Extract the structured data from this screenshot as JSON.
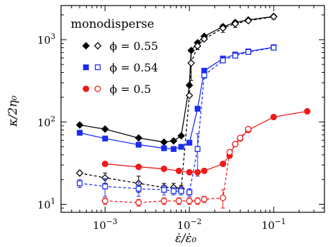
{
  "chart_data": {
    "type": "scatter",
    "xscale": "log",
    "yscale": "log",
    "xlim": [
      0.0003,
      0.4
    ],
    "ylim": [
      8,
      2600
    ],
    "xlabel": "ε̇/ε̇₀",
    "ylabel": "κ/2η₀",
    "x_ticks": [
      {
        "value": 0.001,
        "base": "10",
        "exp": "−3"
      },
      {
        "value": 0.01,
        "base": "10",
        "exp": "−2"
      },
      {
        "value": 0.1,
        "base": "10",
        "exp": "−1"
      }
    ],
    "y_ticks": [
      {
        "value": 10,
        "base": "10",
        "exp": "1"
      },
      {
        "value": 100,
        "base": "10",
        "exp": "2"
      },
      {
        "value": 1000,
        "base": "10",
        "exp": "3"
      }
    ],
    "legend_title": "monodisperse",
    "legend_position": "top-left",
    "series": [
      {
        "name": "ϕ = 0.55",
        "legend_label": "ϕ = 0.55",
        "color": "#000000",
        "filled_marker": "diamond",
        "open_marker": "diamond-open",
        "filled": {
          "x": [
            0.0005,
            0.001,
            0.0025,
            0.005,
            0.0065,
            0.008,
            0.01,
            0.0105,
            0.0125,
            0.015,
            0.025,
            0.035,
            0.05,
            0.1
          ],
          "y": [
            92,
            82,
            64,
            57,
            59,
            68,
            280,
            740,
            920,
            1100,
            1440,
            1620,
            1740,
            1920
          ]
        },
        "open": {
          "x": [
            0.0005,
            0.001,
            0.0025,
            0.005,
            0.0065,
            0.008,
            0.01,
            0.0105,
            0.0125,
            0.015,
            0.025,
            0.035,
            0.05,
            0.1
          ],
          "y": [
            24,
            21,
            18,
            16,
            16,
            15.5,
            210,
            520,
            840,
            1020,
            1380,
            1560,
            1700,
            1900
          ],
          "err": [
            0,
            3,
            4,
            2,
            2,
            1.5,
            0,
            200,
            80,
            0,
            150,
            150,
            0,
            120
          ]
        }
      },
      {
        "name": "ϕ = 0.54",
        "legend_label": "ϕ = 0.54",
        "color": "#1a2cf0",
        "filled_marker": "square",
        "open_marker": "square-open",
        "filled": {
          "x": [
            0.0005,
            0.001,
            0.0025,
            0.005,
            0.0065,
            0.008,
            0.01,
            0.0125,
            0.015,
            0.025,
            0.035,
            0.05,
            0.1
          ],
          "y": [
            74,
            63,
            53,
            48,
            47,
            50,
            56,
            145,
            420,
            590,
            660,
            720,
            810
          ]
        },
        "open": {
          "x": [
            0.0005,
            0.001,
            0.0025,
            0.005,
            0.0065,
            0.008,
            0.01,
            0.0125,
            0.015,
            0.025,
            0.035,
            0.05,
            0.1
          ],
          "y": [
            18,
            16.5,
            15.5,
            15,
            14.5,
            14.5,
            14,
            47,
            370,
            560,
            640,
            710,
            800
          ],
          "err": [
            2,
            4,
            3,
            2,
            1.5,
            1.5,
            1.5,
            25,
            30,
            0,
            0,
            0,
            0
          ]
        }
      },
      {
        "name": "ϕ = 0.5",
        "legend_label": "ϕ = 0.5",
        "color": "#ef1a1a",
        "filled_marker": "circle",
        "open_marker": "circle-open",
        "filled": {
          "x": [
            0.001,
            0.0025,
            0.005,
            0.0075,
            0.01,
            0.0125,
            0.015,
            0.025,
            0.03,
            0.035,
            0.04,
            0.05,
            0.1,
            0.25
          ],
          "y": [
            31,
            28.5,
            27,
            25.5,
            24.5,
            24.5,
            25.5,
            31,
            39,
            54,
            63,
            80,
            115,
            135
          ]
        },
        "open": {
          "x": [
            0.001,
            0.0025,
            0.005,
            0.0075,
            0.01,
            0.0125,
            0.015,
            0.025,
            0.03,
            0.035,
            0.04,
            0.05
          ],
          "y": [
            11,
            10.5,
            11,
            11,
            11,
            11,
            11.5,
            12,
            43,
            54,
            64,
            82
          ],
          "err": [
            1,
            1,
            1,
            1,
            1,
            1,
            1,
            3,
            3,
            0,
            0,
            0
          ]
        }
      }
    ]
  }
}
